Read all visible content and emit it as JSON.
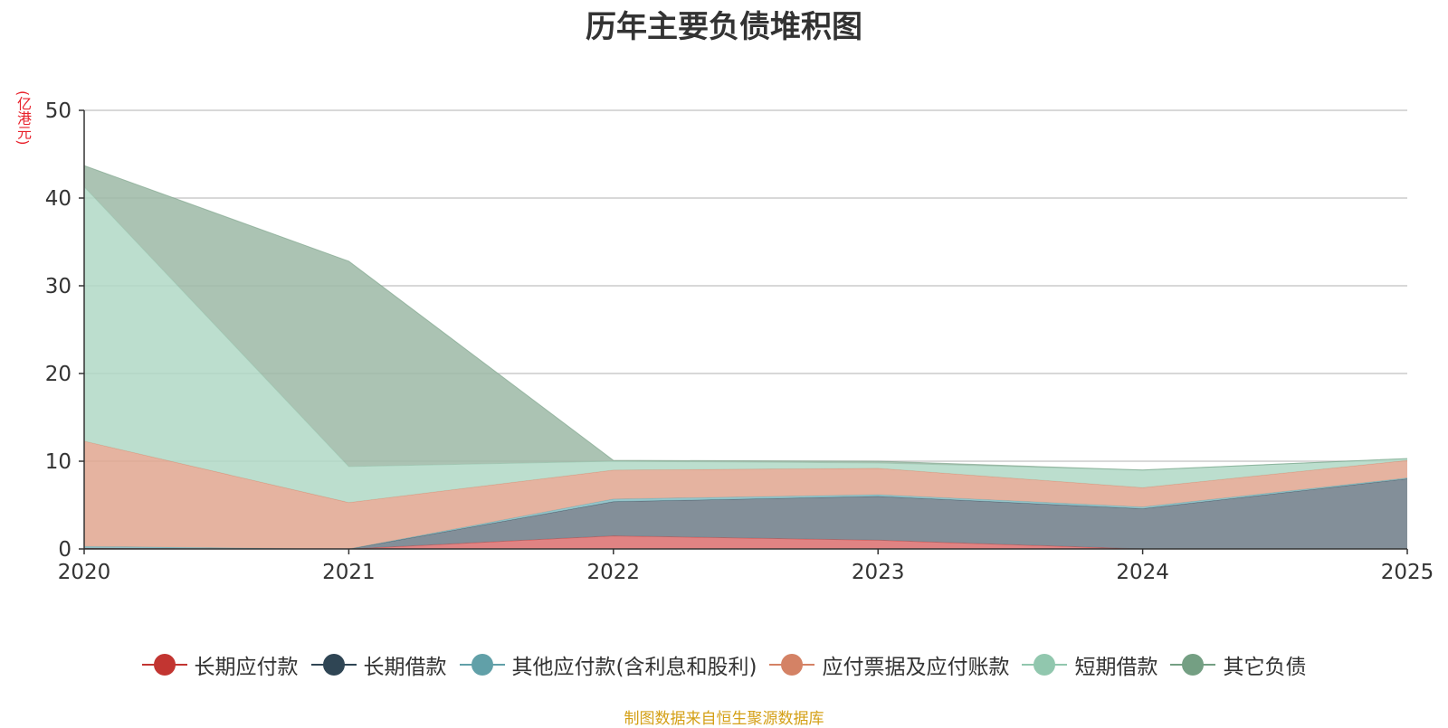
{
  "title": "历年主要负债堆积图",
  "unit": "(亿港元)",
  "source": "制图数据来自恒生聚源数据库",
  "chart_data": {
    "type": "area",
    "stacked": true,
    "title": "历年主要负债堆积图",
    "ylabel": "(亿港元)",
    "xlabel": "",
    "x": [
      "2020",
      "2021",
      "2022",
      "2023",
      "2024",
      "2025"
    ],
    "ylim": [
      0,
      50
    ],
    "yticks": [
      0,
      10,
      20,
      30,
      40,
      50
    ],
    "grid": true,
    "legend": "bottom",
    "series": [
      {
        "name": "长期应付款",
        "color": "#c23531",
        "fill": "#db6d6d",
        "values": [
          0.1,
          0.0,
          1.5,
          1.0,
          0.0,
          0.0
        ]
      },
      {
        "name": "长期借款",
        "color": "#2f4554",
        "fill": "#6d7b87",
        "values": [
          0.0,
          0.0,
          3.9,
          5.0,
          4.6,
          8.0
        ]
      },
      {
        "name": "其他应付款(含利息和股利)",
        "color": "#61a0a8",
        "fill": "#84bcc2",
        "values": [
          0.2,
          0.0,
          0.3,
          0.2,
          0.2,
          0.1
        ]
      },
      {
        "name": "应付票据及应付账款",
        "color": "#d48265",
        "fill": "#e0a68f",
        "values": [
          12.0,
          5.3,
          3.3,
          3.0,
          2.2,
          2.0
        ]
      },
      {
        "name": "短期借款",
        "color": "#91c7ae",
        "fill": "#b0d8c5",
        "values": [
          29.0,
          4.1,
          1.0,
          0.6,
          2.0,
          0.2
        ]
      },
      {
        "name": "其它负债",
        "color": "#749f83",
        "fill": "#9cb8a6",
        "values": [
          2.4,
          23.4,
          0.1,
          0.2,
          0.0,
          0.0
        ]
      }
    ]
  }
}
